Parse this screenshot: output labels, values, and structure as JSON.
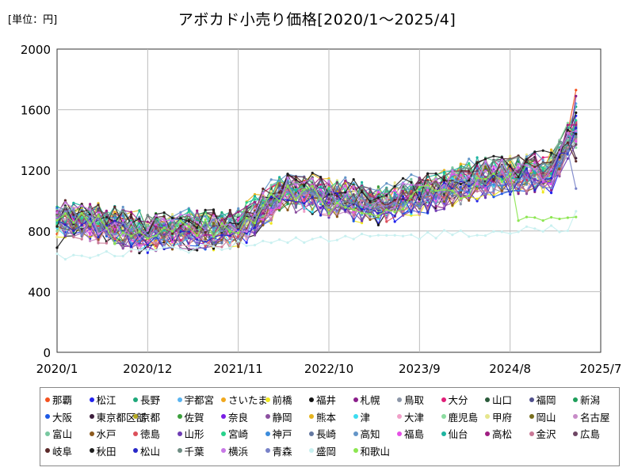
{
  "header": {
    "unit_label": "[単位：円]",
    "title": "アボカド小売り価格[2020/1～2025/4]"
  },
  "chart_data": {
    "type": "line",
    "title": "アボカド小売り価格[2020/1～2025/4]",
    "unit": "円",
    "xlabel": "",
    "ylabel": "",
    "x_ticks": [
      "2020/1",
      "2020/12",
      "2021/11",
      "2022/10",
      "2023/9",
      "2024/8",
      "2025/7"
    ],
    "y_ticks": [
      0,
      400,
      800,
      1200,
      1600,
      2000
    ],
    "ylim": [
      0,
      2000
    ],
    "x_range": [
      "2020-01",
      "2025-07"
    ],
    "grid": true,
    "legend_placement": "bottom",
    "series": [
      {
        "name": "那覇",
        "color": "#f4511e",
        "start": 780,
        "end": 1730
      },
      {
        "name": "松江",
        "color": "#2222ee",
        "start": 900,
        "end": 1560
      },
      {
        "name": "長野",
        "color": "#1ea87a",
        "start": 960,
        "end": 1620
      },
      {
        "name": "宇都宮",
        "color": "#5ab4f0",
        "start": 820,
        "end": 1640
      },
      {
        "name": "さいたま",
        "color": "#f0a81e",
        "start": 830,
        "end": 1480
      },
      {
        "name": "前橋",
        "color": "#f0e81e",
        "start": 760,
        "end": 1460
      },
      {
        "name": "福井",
        "color": "#111111",
        "start": 690,
        "end": 1580
      },
      {
        "name": "札幌",
        "color": "#8a1e8a",
        "start": 880,
        "end": 1690
      },
      {
        "name": "鳥取",
        "color": "#8c96a8",
        "start": 940,
        "end": 1400
      },
      {
        "name": "大分",
        "color": "#e01e78",
        "start": 860,
        "end": 1520
      },
      {
        "name": "山口",
        "color": "#2a5a3a",
        "start": 900,
        "end": 1440
      },
      {
        "name": "福岡",
        "color": "#50508c",
        "start": 930,
        "end": 1470
      },
      {
        "name": "新潟",
        "color": "#1e9e5a",
        "start": 870,
        "end": 1500
      },
      {
        "name": "大阪",
        "color": "#1e5ae6",
        "start": 950,
        "end": 1450
      },
      {
        "name": "東京都区部",
        "color": "#3c1e3c",
        "start": 850,
        "end": 1280
      },
      {
        "name": "京都",
        "color": "#b4a81e",
        "start": 800,
        "end": 1420
      },
      {
        "name": "佐賀",
        "color": "#3ca03c",
        "start": 840,
        "end": 1490
      },
      {
        "name": "奈良",
        "color": "#7a1ee6",
        "start": 890,
        "end": 1510
      },
      {
        "name": "静岡",
        "color": "#8c50a0",
        "start": 910,
        "end": 1430
      },
      {
        "name": "熊本",
        "color": "#e6b41e",
        "start": 870,
        "end": 1390
      },
      {
        "name": "津",
        "color": "#3cdcf0",
        "start": 820,
        "end": 1470
      },
      {
        "name": "大津",
        "color": "#f0a0c8",
        "start": 880,
        "end": 1440
      },
      {
        "name": "鹿児島",
        "color": "#8cdca0",
        "start": 800,
        "end": 1350
      },
      {
        "name": "甲府",
        "color": "#e6e68c",
        "start": 760,
        "end": 1410
      },
      {
        "name": "岡山",
        "color": "#786e1e",
        "start": 830,
        "end": 1460
      },
      {
        "name": "名古屋",
        "color": "#c88cc8",
        "start": 900,
        "end": 1400
      },
      {
        "name": "富山",
        "color": "#78c8a0",
        "start": 940,
        "end": 1380
      },
      {
        "name": "水戸",
        "color": "#8c5a1e",
        "start": 860,
        "end": 1480
      },
      {
        "name": "徳島",
        "color": "#dc505a",
        "start": 910,
        "end": 1510
      },
      {
        "name": "山形",
        "color": "#6e3cb4",
        "start": 880,
        "end": 1370
      },
      {
        "name": "宮崎",
        "color": "#28d28c",
        "start": 850,
        "end": 1530
      },
      {
        "name": "神戸",
        "color": "#3c8cdc",
        "start": 900,
        "end": 1450
      },
      {
        "name": "長崎",
        "color": "#6478a0",
        "start": 870,
        "end": 1490
      },
      {
        "name": "高知",
        "color": "#6496c8",
        "start": 920,
        "end": 1420
      },
      {
        "name": "福島",
        "color": "#e650e6",
        "start": 890,
        "end": 1390
      },
      {
        "name": "仙台",
        "color": "#1eb4a0",
        "start": 860,
        "end": 1460
      },
      {
        "name": "高松",
        "color": "#a01e82",
        "start": 930,
        "end": 1500
      },
      {
        "name": "金沢",
        "color": "#c87896",
        "start": 900,
        "end": 1410
      },
      {
        "name": "広島",
        "color": "#6e4664",
        "start": 880,
        "end": 1370
      },
      {
        "name": "岐阜",
        "color": "#5a2828",
        "start": 910,
        "end": 1260
      },
      {
        "name": "秋田",
        "color": "#1e1e1e",
        "start": 830,
        "end": 1440
      },
      {
        "name": "松山",
        "color": "#2828c8",
        "start": 870,
        "end": 1480
      },
      {
        "name": "千葉",
        "color": "#6e8c82",
        "start": 900,
        "end": 1420
      },
      {
        "name": "横浜",
        "color": "#c878e6",
        "start": 920,
        "end": 1460
      },
      {
        "name": "青森",
        "color": "#7882c8",
        "start": 880,
        "end": 1080
      },
      {
        "name": "盛岡",
        "color": "#c8f0f0",
        "start": 650,
        "end": 930
      },
      {
        "name": "和歌山",
        "color": "#8ce650",
        "start": 870,
        "end": 880
      }
    ]
  }
}
